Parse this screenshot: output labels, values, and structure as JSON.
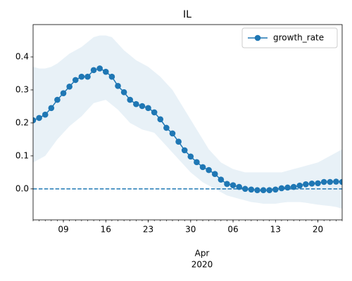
{
  "chart_data": {
    "type": "line",
    "title": "IL",
    "x": [
      "2020-03-04",
      "2020-03-05",
      "2020-03-06",
      "2020-03-07",
      "2020-03-08",
      "2020-03-09",
      "2020-03-10",
      "2020-03-11",
      "2020-03-12",
      "2020-03-13",
      "2020-03-14",
      "2020-03-15",
      "2020-03-16",
      "2020-03-17",
      "2020-03-18",
      "2020-03-19",
      "2020-03-20",
      "2020-03-21",
      "2020-03-22",
      "2020-03-23",
      "2020-03-24",
      "2020-03-25",
      "2020-03-26",
      "2020-03-27",
      "2020-03-28",
      "2020-03-29",
      "2020-03-30",
      "2020-03-31",
      "2020-04-01",
      "2020-04-02",
      "2020-04-03",
      "2020-04-04",
      "2020-04-05",
      "2020-04-06",
      "2020-04-07",
      "2020-04-08",
      "2020-04-09",
      "2020-04-10",
      "2020-04-11",
      "2020-04-12",
      "2020-04-13",
      "2020-04-14",
      "2020-04-15",
      "2020-04-16",
      "2020-04-17",
      "2020-04-18",
      "2020-04-19",
      "2020-04-20",
      "2020-04-21",
      "2020-04-22",
      "2020-04-23",
      "2020-04-24"
    ],
    "series": [
      {
        "name": "growth_rate",
        "color": "#1f77b4",
        "values": [
          0.208,
          0.215,
          0.225,
          0.245,
          0.27,
          0.29,
          0.31,
          0.33,
          0.34,
          0.34,
          0.36,
          0.365,
          0.355,
          0.34,
          0.312,
          0.293,
          0.27,
          0.257,
          0.251,
          0.245,
          0.232,
          0.211,
          0.185,
          0.168,
          0.143,
          0.117,
          0.098,
          0.081,
          0.066,
          0.057,
          0.045,
          0.028,
          0.015,
          0.011,
          0.006,
          0.0,
          -0.002,
          -0.004,
          -0.004,
          -0.004,
          -0.002,
          0.002,
          0.004,
          0.006,
          0.01,
          0.014,
          0.016,
          0.017,
          0.021,
          0.021,
          0.022,
          0.021
        ]
      }
    ],
    "band": {
      "color": "#1f77b4",
      "opacity": 0.1,
      "upper": [
        0.37,
        0.365,
        0.365,
        0.37,
        0.38,
        0.395,
        0.41,
        0.42,
        0.43,
        0.445,
        0.46,
        0.465,
        0.465,
        0.46,
        0.44,
        0.42,
        0.405,
        0.39,
        0.38,
        0.37,
        0.355,
        0.34,
        0.32,
        0.3,
        0.27,
        0.24,
        0.21,
        0.18,
        0.15,
        0.12,
        0.1,
        0.08,
        0.07,
        0.06,
        0.055,
        0.05,
        0.05,
        0.05,
        0.05,
        0.05,
        0.05,
        0.05,
        0.055,
        0.06,
        0.065,
        0.07,
        0.075,
        0.08,
        0.09,
        0.1,
        0.11,
        0.12
      ],
      "lower": [
        0.08,
        0.09,
        0.1,
        0.125,
        0.15,
        0.17,
        0.19,
        0.205,
        0.22,
        0.24,
        0.26,
        0.265,
        0.27,
        0.255,
        0.24,
        0.22,
        0.2,
        0.19,
        0.18,
        0.175,
        0.17,
        0.15,
        0.13,
        0.11,
        0.09,
        0.07,
        0.05,
        0.035,
        0.02,
        0.01,
        0,
        -0.01,
        -0.02,
        -0.025,
        -0.03,
        -0.035,
        -0.04,
        -0.042,
        -0.045,
        -0.045,
        -0.045,
        -0.042,
        -0.04,
        -0.04,
        -0.04,
        -0.042,
        -0.045,
        -0.048,
        -0.05,
        -0.052,
        -0.055,
        -0.06
      ]
    },
    "reference_line": {
      "value": 0,
      "style": "dashed",
      "color": "#1f77b4"
    },
    "xlim": [
      "2020-03-04",
      "2020-04-24"
    ],
    "xticks": [
      {
        "value": "2020-03-09",
        "label": "09"
      },
      {
        "value": "2020-03-16",
        "label": "16"
      },
      {
        "value": "2020-03-23",
        "label": "23"
      },
      {
        "value": "2020-03-30",
        "label": "30"
      },
      {
        "value": "2020-04-06",
        "label": "06"
      },
      {
        "value": "2020-04-13",
        "label": "13"
      },
      {
        "value": "2020-04-20",
        "label": "20"
      }
    ],
    "x_month_label": "Apr",
    "x_year_label": "2020",
    "ylim": [
      -0.094,
      0.498
    ],
    "yticks": [
      {
        "value": 0,
        "label": "0.0"
      },
      0.1,
      0.2,
      0.3,
      0.4
    ],
    "legend": "upper right",
    "grid": false
  }
}
